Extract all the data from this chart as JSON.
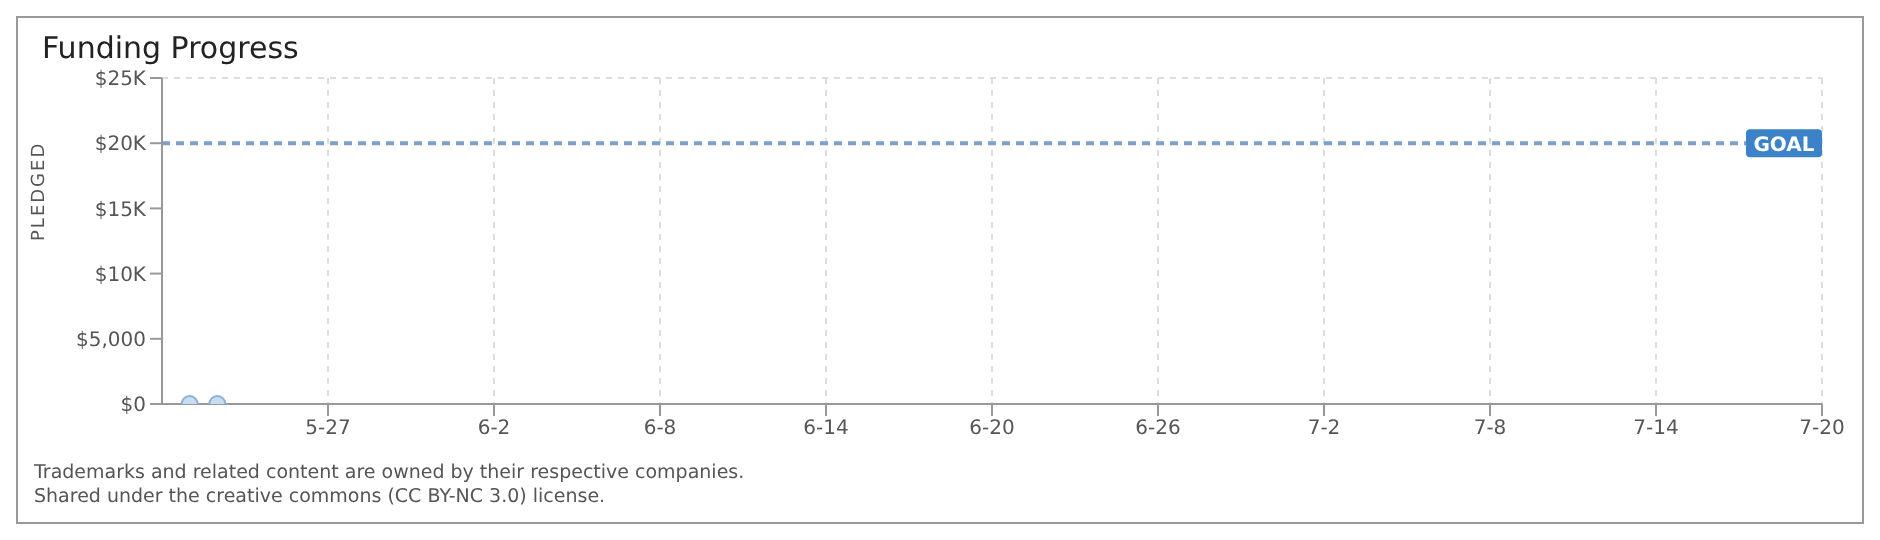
{
  "chart_data": {
    "type": "scatter",
    "title": "Funding Progress",
    "ylabel": "PLEDGED",
    "x": [
      "--05-22",
      "--05-23"
    ],
    "series": [
      {
        "color": "#c9ddf2",
        "values": [
          0,
          0
        ]
      }
    ],
    "xlim": [
      "--05-21",
      "--07-20"
    ],
    "xticks": [
      {
        "value": "--05-27",
        "label": "5-27"
      },
      {
        "value": "--06-02",
        "label": "6-2"
      },
      {
        "value": "--06-08",
        "label": "6-8"
      },
      {
        "value": "--06-14",
        "label": "6-14"
      },
      {
        "value": "--06-20",
        "label": "6-20"
      },
      {
        "value": "--06-26",
        "label": "6-26"
      },
      {
        "value": "--07-02",
        "label": "7-2"
      },
      {
        "value": "--07-08",
        "label": "7-8"
      },
      {
        "value": "--07-14",
        "label": "7-14"
      },
      {
        "value": "--07-20",
        "label": "7-20"
      }
    ],
    "ylim": [
      0,
      25000
    ],
    "yticks": [
      {
        "value": 0,
        "label": "$0"
      },
      {
        "value": 5000,
        "label": "$5,000"
      },
      {
        "value": 10000,
        "label": "$10K"
      },
      {
        "value": 15000,
        "label": "$15K"
      },
      {
        "value": 20000,
        "label": "$20K"
      },
      {
        "value": 25000,
        "label": "$25K"
      }
    ],
    "grid": true,
    "marker": "circle",
    "ref_lines": [
      {
        "axis": "y",
        "value": 20000,
        "label": "GOAL",
        "color": "#7e9fc7",
        "line_style": "dashed"
      }
    ],
    "annotations": [
      "Trademarks and related content are owned by their respective companies.",
      "Shared under the creative commons (CC BY-NC 3.0) license."
    ]
  }
}
